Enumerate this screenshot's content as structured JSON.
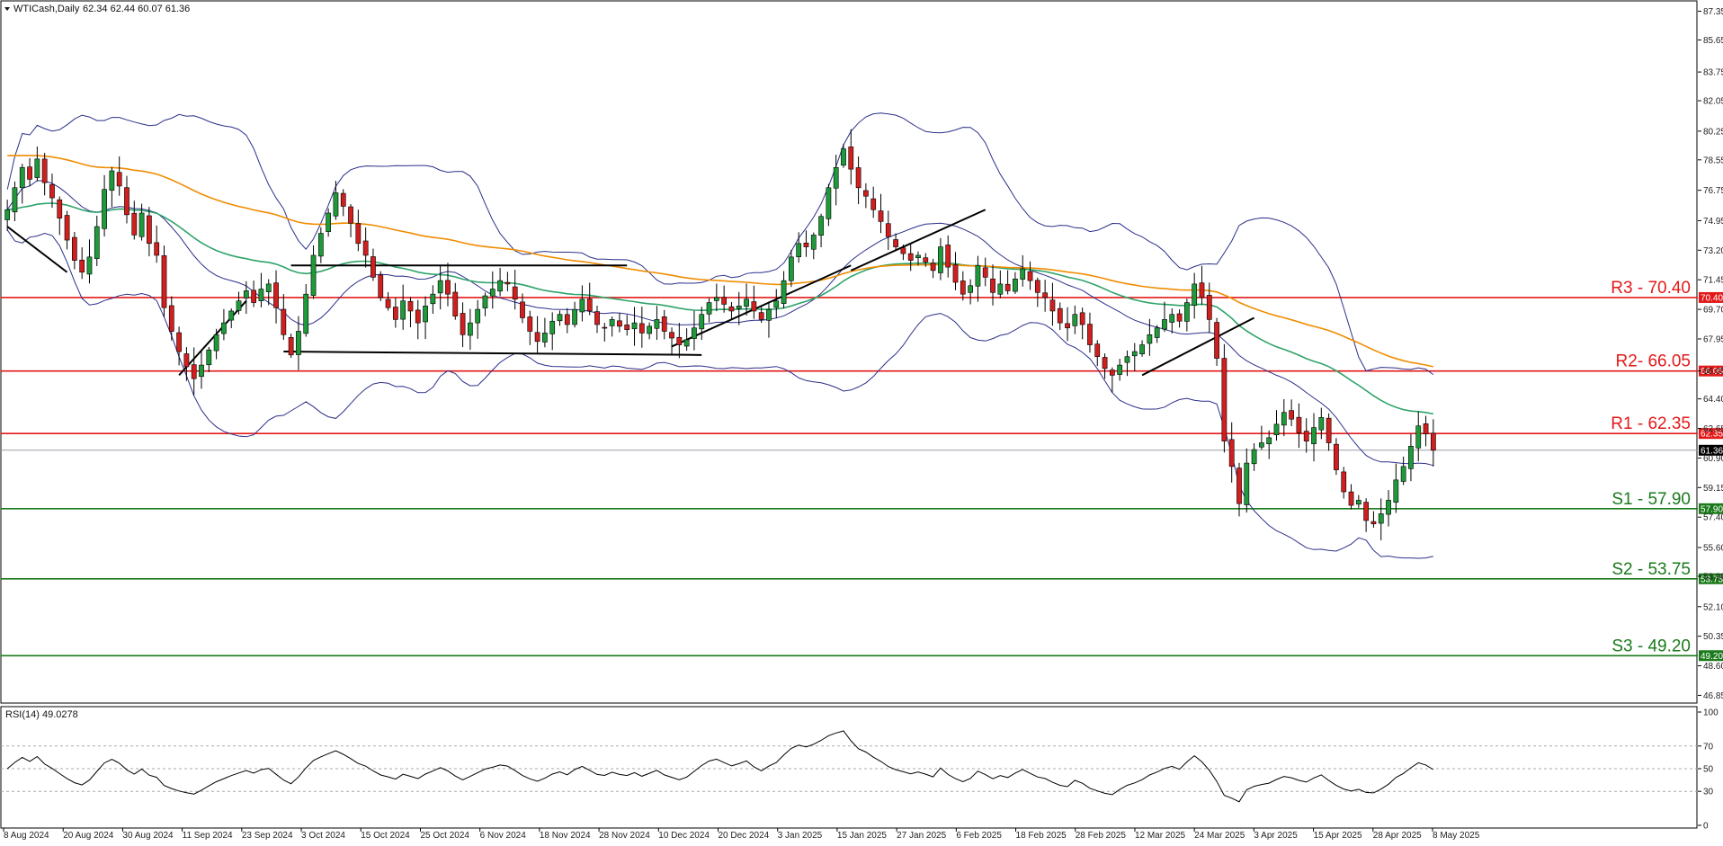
{
  "header": {
    "symbol": "WTICash,Daily",
    "ohlc": "62.34 62.44 60.07 61.36"
  },
  "rsi": {
    "label": "RSI(14) 49.0278",
    "ticks": [
      "100",
      "70",
      "50",
      "30",
      "0"
    ],
    "levels": [
      100,
      70,
      50,
      30,
      0
    ],
    "color": "#000000"
  },
  "chart_data": {
    "type": "candlestick",
    "y_ticks": [
      "87.35",
      "85.65",
      "83.75",
      "82.05",
      "80.25",
      "78.55",
      "76.75",
      "74.95",
      "73.20",
      "71.45",
      "69.70",
      "67.95",
      "66.05",
      "64.40",
      "62.65",
      "60.90",
      "59.15",
      "57.40",
      "55.60",
      "53.90",
      "52.10",
      "50.35",
      "48.60",
      "46.85"
    ],
    "ylim": [
      46.5,
      87.8
    ],
    "x_ticks": [
      "8 Aug 2024",
      "20 Aug 2024",
      "30 Aug 2024",
      "11 Sep 2024",
      "23 Sep 2024",
      "3 Oct 2024",
      "15 Oct 2024",
      "25 Oct 2024",
      "6 Nov 2024",
      "18 Nov 2024",
      "28 Nov 2024",
      "10 Dec 2024",
      "20 Dec 2024",
      "3 Jan 2025",
      "15 Jan 2025",
      "27 Jan 2025",
      "6 Feb 2025",
      "18 Feb 2025",
      "28 Feb 2025",
      "12 Mar 2025",
      "24 Mar 2025",
      "3 Apr 2025",
      "15 Apr 2025",
      "28 Apr 2025",
      "8 May 2025"
    ],
    "current_price": "61.36",
    "levels": [
      {
        "label": "R3 - 70.40",
        "value": 70.4,
        "badge": "70.40",
        "color": "#e31919"
      },
      {
        "label": "R2- 66.05",
        "value": 66.05,
        "badge": "66.05",
        "color": "#e31919"
      },
      {
        "label": "R1 - 62.35",
        "value": 62.35,
        "badge": "62.35",
        "color": "#e31919"
      },
      {
        "label": "S1 - 57.90",
        "value": 57.9,
        "badge": "57.90",
        "color": "#1b7a1b"
      },
      {
        "label": "S2 - 53.75",
        "value": 53.75,
        "badge": "53.75",
        "color": "#1b7a1b"
      },
      {
        "label": "S3 - 49.20",
        "value": 49.2,
        "badge": "49.20",
        "color": "#1b7a1b"
      }
    ],
    "closes": [
      75.6,
      76.9,
      78.1,
      77.4,
      78.6,
      77.2,
      76.3,
      75.1,
      73.8,
      72.6,
      71.9,
      72.8,
      74.6,
      76.8,
      77.9,
      77.0,
      75.3,
      74.1,
      75.4,
      73.6,
      72.9,
      69.8,
      68.4,
      67.2,
      66.3,
      65.6,
      66.4,
      67.3,
      68.2,
      68.9,
      69.6,
      70.2,
      70.8,
      70.1,
      70.9,
      71.2,
      69.8,
      68.2,
      67.0,
      68.4,
      70.6,
      72.9,
      74.2,
      75.4,
      76.6,
      75.8,
      74.8,
      73.6,
      72.9,
      71.6,
      70.4,
      69.8,
      69.1,
      70.2,
      69.6,
      68.9,
      69.9,
      70.6,
      71.4,
      70.6,
      69.3,
      68.2,
      68.9,
      69.7,
      70.5,
      70.9,
      71.4,
      71.2,
      70.3,
      69.2,
      68.4,
      67.8,
      68.3,
      69.0,
      69.4,
      68.8,
      69.7,
      70.3,
      69.6,
      68.8,
      68.6,
      69.1,
      68.7,
      68.5,
      68.9,
      68.3,
      68.7,
      69.1,
      68.4,
      68.0,
      67.6,
      67.9,
      68.6,
      69.4,
      70.1,
      70.4,
      70.0,
      69.6,
      69.9,
      70.3,
      69.6,
      69.1,
      69.7,
      70.2,
      71.4,
      72.8,
      73.6,
      73.4,
      74.1,
      75.2,
      76.9,
      78.1,
      79.2,
      78.0,
      76.9,
      76.4,
      75.6,
      74.9,
      74.0,
      73.4,
      73.0,
      72.6,
      72.9,
      72.5,
      72.0,
      73.4,
      72.2,
      71.3,
      70.6,
      71.1,
      72.3,
      71.6,
      70.7,
      71.2,
      70.8,
      71.5,
      72.1,
      71.4,
      70.7,
      70.4,
      69.6,
      68.9,
      68.6,
      69.4,
      68.8,
      67.6,
      66.9,
      66.2,
      65.8,
      66.4,
      66.9,
      67.2,
      67.6,
      68.2,
      68.6,
      69.1,
      69.4,
      69.0,
      70.1,
      71.2,
      70.4,
      69.1,
      66.8,
      61.9,
      60.4,
      58.2,
      60.6,
      61.4,
      61.8,
      62.1,
      62.9,
      63.6,
      63.2,
      62.4,
      61.9,
      62.7,
      63.3,
      61.8,
      60.2,
      58.9,
      58.1,
      58.4,
      57.2,
      57.0,
      57.6,
      58.4,
      59.6,
      60.4,
      61.6,
      62.8,
      62.34,
      61.36
    ]
  }
}
